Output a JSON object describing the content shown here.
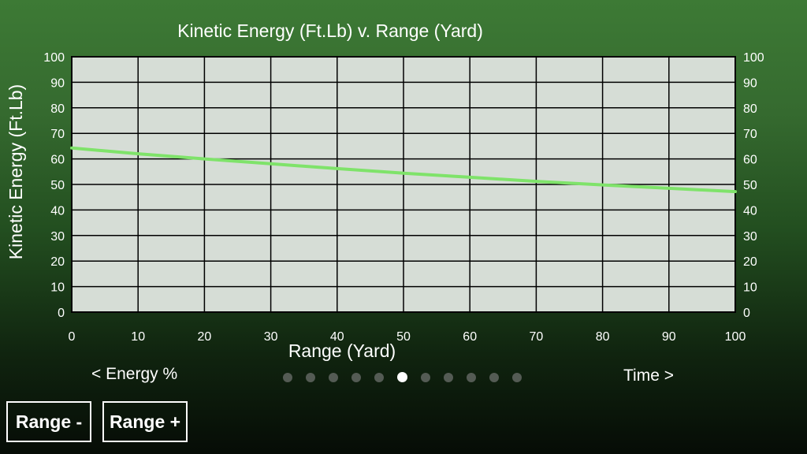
{
  "chart_data": {
    "type": "line",
    "title": "Kinetic Energy (Ft.Lb) v. Range (Yard)",
    "xlabel": "Range (Yard)",
    "ylabel": "Kinetic Energy (Ft.Lb)",
    "xlim": [
      0,
      100
    ],
    "ylim": [
      0,
      100
    ],
    "x_ticks": [
      "0",
      "10",
      "20",
      "30",
      "40",
      "50",
      "60",
      "70",
      "80",
      "90",
      "100"
    ],
    "y_ticks": [
      "0",
      "10",
      "20",
      "30",
      "40",
      "50",
      "60",
      "70",
      "80",
      "90",
      "100"
    ],
    "grid": true,
    "right_axis_ticks": true,
    "series": [
      {
        "color": "#7fe36a",
        "x": [
          0,
          10,
          20,
          30,
          40,
          50,
          60,
          70,
          80,
          90,
          100
        ],
        "y": [
          64.3,
          62.0,
          60.0,
          58.1,
          56.2,
          54.4,
          52.8,
          51.2,
          49.8,
          48.5,
          47.2
        ]
      }
    ]
  },
  "navigation": {
    "prev_label": "< Energy %",
    "next_label": "Time >",
    "page_count": 11,
    "active_page": 5
  },
  "buttons": {
    "range_minus": "Range -",
    "range_plus": "Range +"
  }
}
